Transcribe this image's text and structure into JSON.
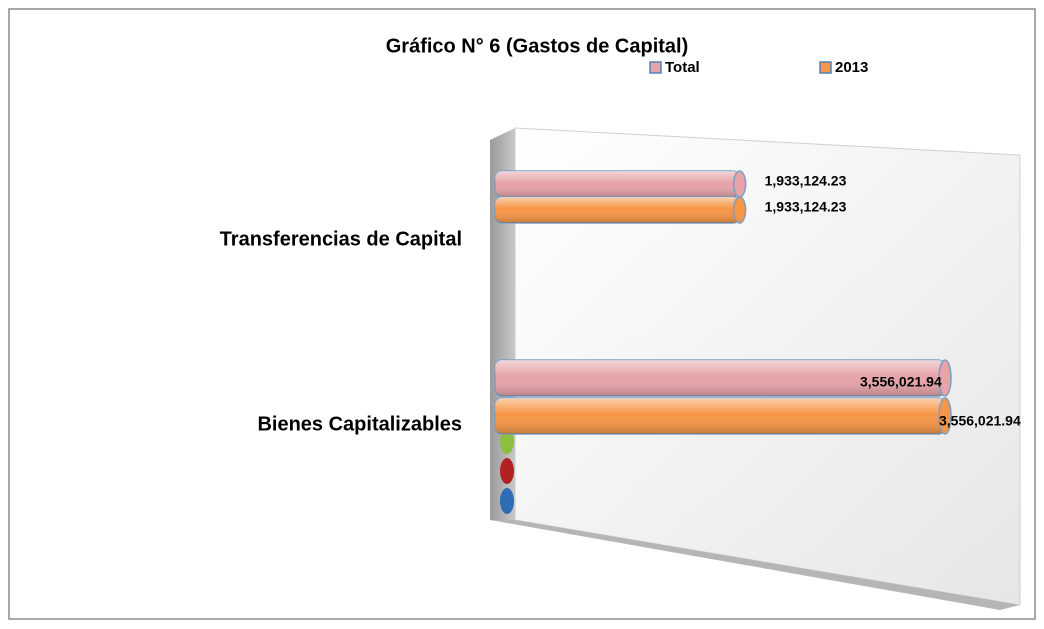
{
  "chart_data": {
    "type": "bar",
    "orientation": "horizontal",
    "title": "Gráfico N° 6 (Gastos de Capital)",
    "categories": [
      "Transferencias de Capital",
      "Bienes Capitalizables"
    ],
    "series": [
      {
        "name": "Total",
        "color": "#e6a3a8",
        "values": [
          1933124.23,
          3556021.94
        ],
        "value_labels": [
          "1,933,124.23",
          "3,556,021.94"
        ]
      },
      {
        "name": "2013",
        "color": "#f79646",
        "values": [
          1933124.23,
          3556021.94
        ],
        "value_labels": [
          "1,933,124.23",
          "3,556,021.94"
        ]
      }
    ],
    "legend": "top"
  }
}
